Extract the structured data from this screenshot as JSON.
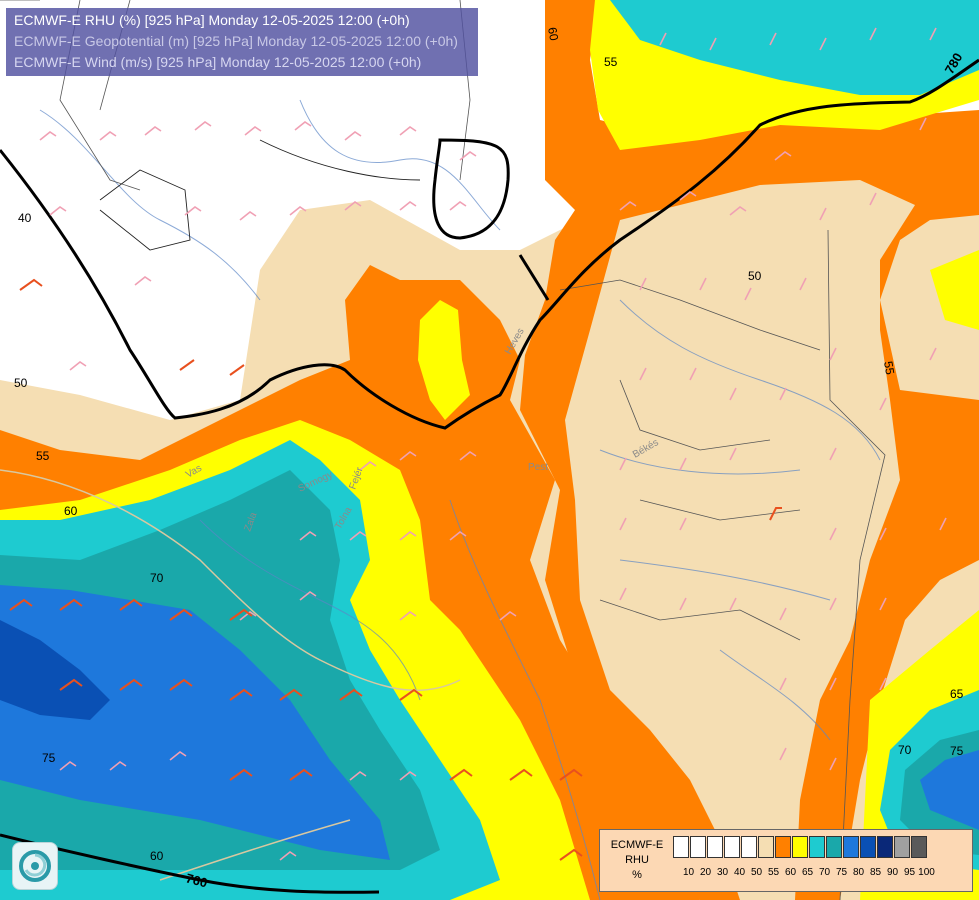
{
  "header": {
    "line1": "ECMWF-E RHU (%) [925 hPa] Monday 12-05-2025 12:00 (+0h)",
    "line2": "ECMWF-E Geopotential (m) [925 hPa] Monday 12-05-2025 12:00 (+0h)",
    "line3": "ECMWF-E Wind (m/s) [925 hPa] Monday 12-05-2025 12:00 (+0h)"
  },
  "contour_labels": [
    "60",
    "55",
    "40",
    "50",
    "55",
    "60",
    "70",
    "75",
    "50",
    "55",
    "65",
    "70",
    "75",
    "60"
  ],
  "geopotential_labels": [
    "780",
    "760"
  ],
  "place_labels": [
    "Békés",
    "Pest",
    "Heves",
    "Vas",
    "Tolna",
    "Fejér",
    "Somogy",
    "Zala"
  ],
  "legend": {
    "title_line1": "ECMWF-E",
    "title_line2": "RHU",
    "title_line3": "%",
    "ticks": [
      "10",
      "20",
      "30",
      "40",
      "50",
      "55",
      "60",
      "65",
      "70",
      "75",
      "80",
      "85",
      "90",
      "95",
      "100"
    ],
    "colors": [
      "#ffffff",
      "#ffffff",
      "#ffffff",
      "#ffffff",
      "#ffffff",
      "#f5deb3",
      "#ff8000",
      "#ffff00",
      "#1ecbd0",
      "#1aa8aa",
      "#1e78dc",
      "#0a50b4",
      "#0a2878",
      "#a0a0a0",
      "#5a5a5a"
    ]
  }
}
